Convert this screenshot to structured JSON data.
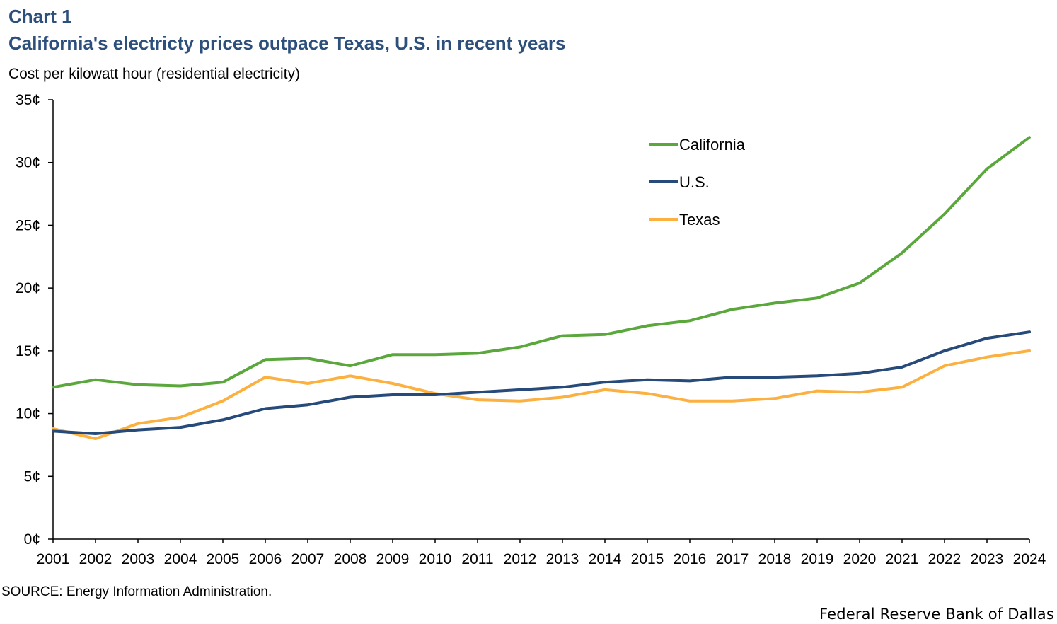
{
  "header": {
    "chart_label": "Chart 1",
    "title": "California's electricty prices outpace Texas, U.S. in recent years",
    "y_caption": "Cost per kilowatt hour (residential electricity)"
  },
  "footer": {
    "source": "SOURCE: Energy Information Administration.",
    "credit": "Federal Reserve Bank of Dallas"
  },
  "colors": {
    "california": "#5aa83c",
    "us": "#264a7a",
    "texas": "#fbb040"
  },
  "chart_data": {
    "type": "line",
    "title": "California's electricty prices outpace Texas, U.S. in recent years",
    "xlabel": "",
    "ylabel": "Cost per kilowatt hour (residential electricity)",
    "x": [
      "2001",
      "2002",
      "2003",
      "2004",
      "2005",
      "2006",
      "2007",
      "2008",
      "2009",
      "2010",
      "2011",
      "2012",
      "2013",
      "2014",
      "2015",
      "2016",
      "2017",
      "2018",
      "2019",
      "2020",
      "2021",
      "2022",
      "2023",
      "2024"
    ],
    "ylim": [
      0,
      35
    ],
    "yticks": [
      "0¢",
      "5¢",
      "10¢",
      "15¢",
      "20¢",
      "25¢",
      "30¢",
      "35¢"
    ],
    "ytick_values": [
      0,
      5,
      10,
      15,
      20,
      25,
      30,
      35
    ],
    "grid": false,
    "legend": "top-right",
    "series": [
      {
        "key": "california",
        "name": "California",
        "values": [
          12.1,
          12.7,
          12.3,
          12.2,
          12.5,
          14.3,
          14.4,
          13.8,
          14.7,
          14.7,
          14.8,
          15.3,
          16.2,
          16.3,
          17.0,
          17.4,
          18.3,
          18.8,
          19.2,
          20.4,
          22.8,
          25.9,
          29.5,
          32.0
        ]
      },
      {
        "key": "us",
        "name": "U.S.",
        "values": [
          8.6,
          8.4,
          8.7,
          8.9,
          9.5,
          10.4,
          10.7,
          11.3,
          11.5,
          11.5,
          11.7,
          11.9,
          12.1,
          12.5,
          12.7,
          12.6,
          12.9,
          12.9,
          13.0,
          13.2,
          13.7,
          15.0,
          16.0,
          16.5
        ]
      },
      {
        "key": "texas",
        "name": "Texas",
        "values": [
          8.8,
          8.0,
          9.2,
          9.7,
          11.0,
          12.9,
          12.4,
          13.0,
          12.4,
          11.6,
          11.1,
          11.0,
          11.3,
          11.9,
          11.6,
          11.0,
          11.0,
          11.2,
          11.8,
          11.7,
          12.1,
          13.8,
          14.5,
          15.0
        ]
      }
    ]
  }
}
